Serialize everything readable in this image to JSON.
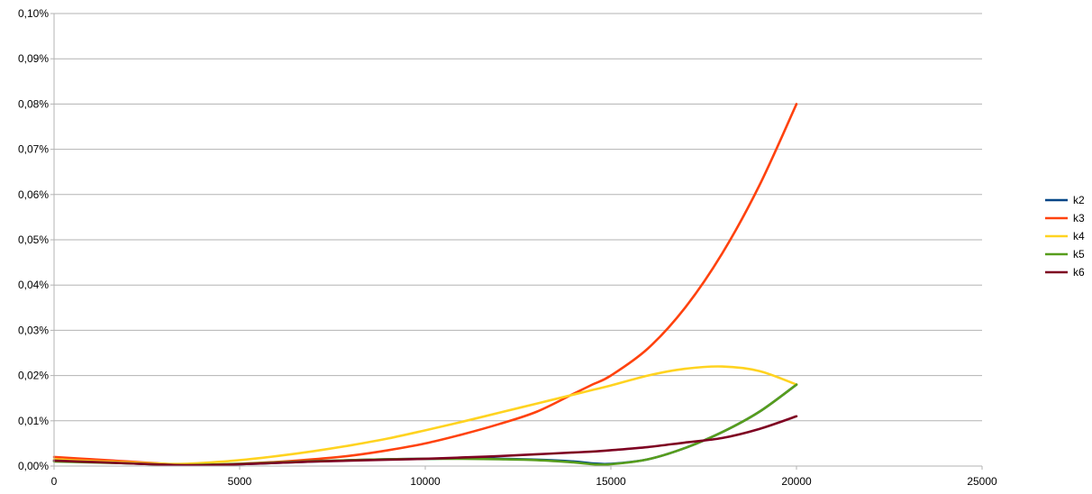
{
  "chart_data": {
    "type": "line",
    "title": "",
    "xlabel": "",
    "ylabel": "",
    "xlim": [
      0,
      25000
    ],
    "ylim": [
      0,
      0.1
    ],
    "x_ticks": [
      0,
      5000,
      10000,
      15000,
      20000,
      25000
    ],
    "x_tick_labels": [
      "0",
      "5000",
      "10000",
      "15000",
      "20000",
      "25000"
    ],
    "y_ticks": [
      0,
      0.01,
      0.02,
      0.03,
      0.04,
      0.05,
      0.06,
      0.07,
      0.08,
      0.09,
      0.1
    ],
    "y_tick_labels": [
      "0,00%",
      "0,01%",
      "0,02%",
      "0,03%",
      "0,04%",
      "0,05%",
      "0,06%",
      "0,07%",
      "0,08%",
      "0,09%",
      "0,10%"
    ],
    "y_unit": "percent",
    "grid": "horizontal",
    "legend_position": "right",
    "x": [
      0,
      1000,
      2000,
      3000,
      3500,
      4000,
      5000,
      6000,
      7000,
      8000,
      9000,
      10000,
      11000,
      12000,
      13000,
      14000,
      14500,
      15000,
      16000,
      17000,
      18000,
      19000,
      20000
    ],
    "series": [
      {
        "name": "k2",
        "color": "#004586",
        "values": [
          0.0012,
          0.0009,
          0.0006,
          0.0003,
          0.0002,
          0.0002,
          0.0004,
          0.0007,
          0.001,
          0.0013,
          0.0015,
          0.0016,
          0.0017,
          0.0016,
          0.0014,
          0.001,
          0.0006,
          0.0005,
          0.0015,
          0.004,
          0.0075,
          0.012,
          0.018
        ]
      },
      {
        "name": "k3",
        "color": "#ff420e",
        "values": [
          0.002,
          0.0015,
          0.001,
          0.0005,
          0.0003,
          0.0002,
          0.0005,
          0.0009,
          0.0015,
          0.0023,
          0.0035,
          0.005,
          0.007,
          0.0093,
          0.012,
          0.016,
          0.018,
          0.02,
          0.026,
          0.035,
          0.047,
          0.062,
          0.08
        ]
      },
      {
        "name": "k4",
        "color": "#ffd320",
        "values": [
          0.0015,
          0.0011,
          0.0008,
          0.0005,
          0.0005,
          0.0007,
          0.0013,
          0.0022,
          0.0033,
          0.0046,
          0.0061,
          0.0079,
          0.0098,
          0.0118,
          0.0138,
          0.0158,
          0.0168,
          0.0178,
          0.02,
          0.0215,
          0.022,
          0.021,
          0.018
        ]
      },
      {
        "name": "k5",
        "color": "#579d1c",
        "values": [
          0.001,
          0.0008,
          0.0006,
          0.0003,
          0.0002,
          0.0003,
          0.0005,
          0.0008,
          0.0011,
          0.0013,
          0.0015,
          0.0016,
          0.0016,
          0.0015,
          0.0013,
          0.0008,
          0.0004,
          0.0004,
          0.0015,
          0.004,
          0.0075,
          0.012,
          0.018
        ]
      },
      {
        "name": "k6",
        "color": "#7e0021",
        "values": [
          0.0012,
          0.0009,
          0.0006,
          0.0003,
          0.0002,
          0.0002,
          0.0004,
          0.0007,
          0.001,
          0.0012,
          0.0014,
          0.0016,
          0.0019,
          0.0022,
          0.0026,
          0.003,
          0.0032,
          0.0035,
          0.0042,
          0.0052,
          0.0062,
          0.0082,
          0.011
        ]
      }
    ]
  }
}
